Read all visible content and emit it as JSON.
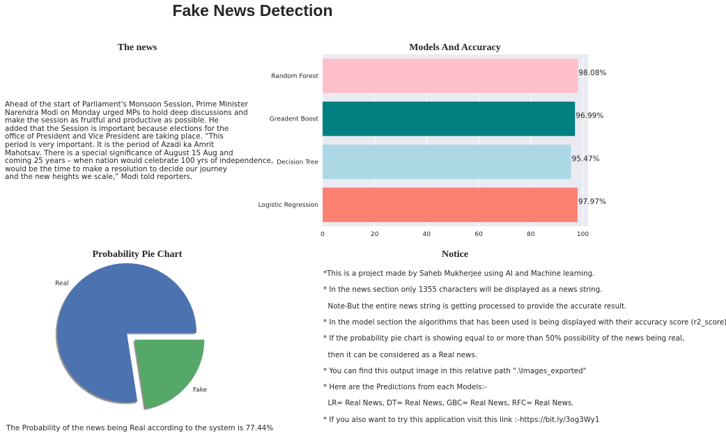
{
  "title": "Fake News Detection",
  "news": {
    "title": "The news",
    "text": "Ahead of the start of Parliament's Monsoon Session, Prime Minister\nNarendra Modi on Monday urged MPs to hold deep discussions and\nmake the session as fruitful and productive as possible. He\nadded that the Session is important because elections for the\noffice of President and Vice President are taking place.  “This\nperiod is very important. It is the period of Azadi ka Amrit\nMahotsav. There is a special significance of August 15 Aug and\ncoming 25 years – when nation would celebrate 100 yrs of independence,\nwould be the time to make a resolution to decide our journey\nand the new heights we scale,” Modi told reporters."
  },
  "chart_data": [
    {
      "type": "bar",
      "orientation": "horizontal",
      "title": "Models And Accuracy",
      "categories": [
        "Logistic Regression",
        "Decision Tree",
        "Greadent Boost",
        "Random Forest"
      ],
      "values": [
        97.97,
        95.47,
        96.99,
        98.08
      ],
      "value_labels": [
        "97.97%",
        "95.47%",
        "96.99%",
        "98.08%"
      ],
      "colors": [
        "#fa8072",
        "#add8e6",
        "#008080",
        "#ffc0cb"
      ],
      "xlim": [
        0,
        102
      ],
      "xticks": [
        0,
        20,
        40,
        60,
        80,
        100
      ],
      "grid": true,
      "background": "#eaeaf2"
    },
    {
      "type": "pie",
      "title": "Probability Pie Chart",
      "labels": [
        "Real",
        "Fake"
      ],
      "values": [
        77.44,
        22.56
      ],
      "colors": [
        "#4c72b0",
        "#55a868"
      ],
      "exploded": "Fake",
      "shadow": true,
      "caption": "The Probability of the news being Real according to the system is 77.44%"
    }
  ],
  "notice": {
    "title": "Notice",
    "lines": [
      "*This is a project made by Saheb Mukherjee using AI and Machine learning.",
      "* In the news section only 1355 characters will be displayed as a news string.",
      "  Note-But the entire news string is getting processed to provide the accurate result.",
      "* In the model section the algorithms that has been used is being displayed with their accuracy score (r2_score).",
      "* If the probability pie chart is showing equal to or more than 50% possibility of the news being real,",
      "  then it can be considered as a Real news.",
      "* You can find this output image in this relative path \".\\Images_exported\"",
      "* Here are the Predictions from each Models:-",
      "  LR= Real News, DT= Real News, GBC= Real News, RFC= Real News.",
      "* If you also want to try this application visit this link :-https://bit.ly/3og3Wy1"
    ]
  }
}
